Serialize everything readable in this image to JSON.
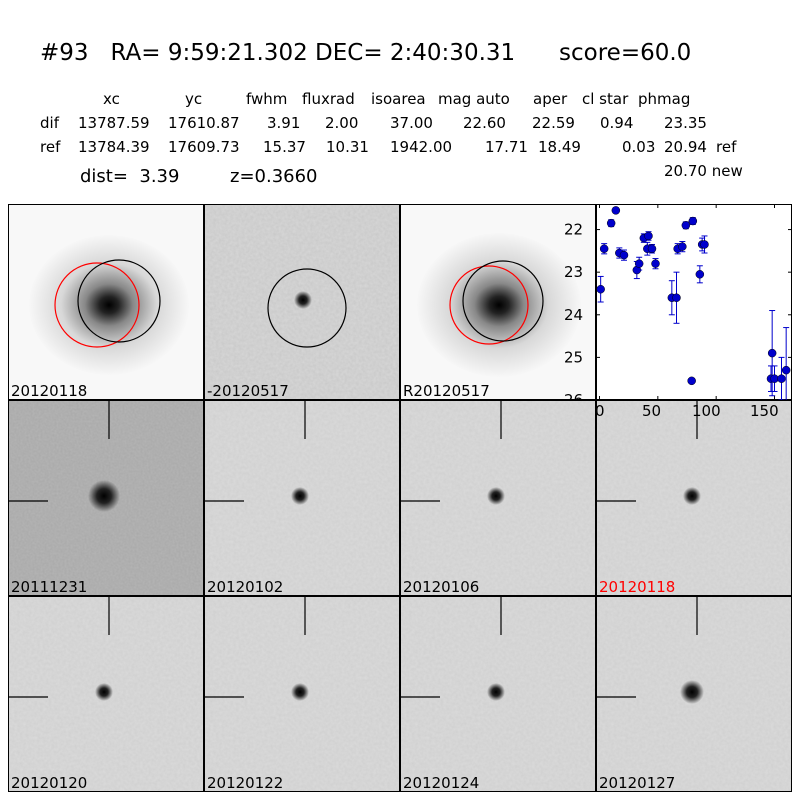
{
  "header": {
    "title": "#93   RA= 9:59:21.302 DEC= 2:40:30.31      score=60.0",
    "columns": [
      "xc",
      "yc",
      "fwhm",
      "fluxrad",
      "isoarea",
      "mag auto",
      "aper",
      "cl star",
      "phmag"
    ],
    "rows": [
      {
        "label": "dif",
        "values": [
          "13787.59",
          "17610.87",
          "3.91",
          "2.00",
          "37.00",
          "22.60",
          "22.59",
          "0.94",
          "23.35"
        ],
        "suffix": ""
      },
      {
        "label": "ref",
        "values": [
          "13784.39",
          "17609.73",
          "15.37",
          "10.31",
          "1942.00",
          "17.71",
          "18.49",
          "0.03",
          "20.94"
        ],
        "suffix": "ref"
      }
    ],
    "dist_text": "dist=  3.39",
    "z_text": "z=0.3660",
    "new_text": "20.70 new"
  },
  "top_panels": [
    {
      "label": "20120118",
      "type": "galaxy"
    },
    {
      "label": "-20120517",
      "type": "diff"
    },
    {
      "label": "R20120517",
      "type": "galaxy"
    }
  ],
  "grid_panels": [
    {
      "label": "20111231",
      "highlight": false
    },
    {
      "label": "20120102",
      "highlight": false
    },
    {
      "label": "20120106",
      "highlight": false
    },
    {
      "label": "20120118",
      "highlight": true
    },
    {
      "label": "20120120",
      "highlight": false
    },
    {
      "label": "20120122",
      "highlight": false
    },
    {
      "label": "20120124",
      "highlight": false
    },
    {
      "label": "20120127",
      "highlight": false
    }
  ],
  "colors": {
    "red": "#ff0000",
    "blue": "#0000cc",
    "circle": "#000000"
  },
  "chart_data": {
    "type": "scatter",
    "title": "",
    "xlabel": "",
    "ylabel": "",
    "xlim": [
      -3,
      165
    ],
    "ylim": [
      26,
      21.4
    ],
    "y_inverted": true,
    "xticks": [
      "0",
      "50",
      "100",
      "150"
    ],
    "yticks": [
      "22",
      "23",
      "24",
      "25",
      "26"
    ],
    "series": [
      {
        "x": [
          1,
          4,
          10,
          14,
          17,
          21,
          32,
          34,
          38,
          41,
          42,
          45,
          48,
          62,
          66,
          67,
          71,
          74,
          80,
          79,
          86,
          88,
          90,
          147,
          148,
          150,
          156,
          160
        ],
        "y": [
          23.4,
          22.45,
          21.85,
          21.55,
          22.55,
          22.6,
          22.95,
          22.8,
          22.2,
          22.45,
          22.15,
          22.45,
          22.8,
          23.6,
          23.6,
          22.45,
          22.4,
          21.9,
          21.8,
          25.55,
          23.05,
          22.35,
          22.35,
          25.5,
          24.9,
          25.5,
          25.5,
          25.3
        ],
        "err": [
          0.3,
          0.12,
          0.08,
          0.06,
          0.12,
          0.12,
          0.2,
          0.15,
          0.1,
          0.15,
          0.1,
          0.1,
          0.12,
          0.4,
          0.6,
          0.12,
          0.12,
          0.08,
          0.08,
          0.05,
          0.2,
          0.15,
          0.2,
          0.3,
          1.0,
          0.3,
          0.5,
          1.0
        ]
      }
    ]
  }
}
